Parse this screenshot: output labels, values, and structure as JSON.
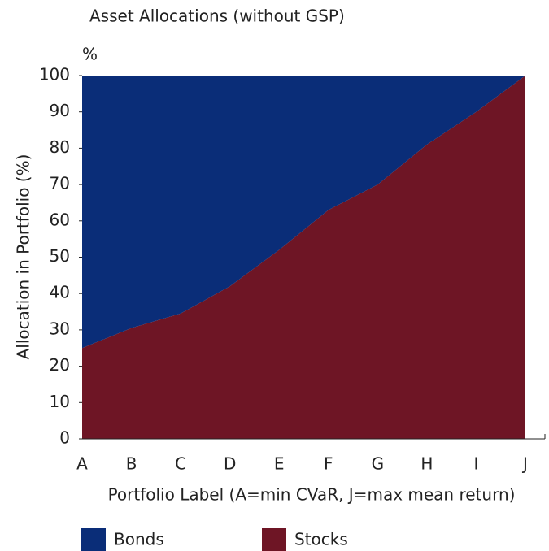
{
  "chart_data": {
    "type": "stacked_area",
    "title": "Asset Allocations (without GSP)",
    "y_unit": "%",
    "y_label": "Allocation in Portfolio (%)",
    "x_label": "Portfolio Label (A=min CVaR, J=max mean return)",
    "categories": [
      "A",
      "B",
      "C",
      "D",
      "E",
      "F",
      "G",
      "H",
      "I",
      "J"
    ],
    "series": [
      {
        "name": "Bonds",
        "color": "#0a2d78",
        "values": [
          75,
          69.5,
          65.5,
          58,
          48,
          37,
          30,
          19,
          10,
          0
        ]
      },
      {
        "name": "Stocks",
        "color": "#6e1525",
        "values": [
          25,
          30.5,
          34.5,
          42,
          52,
          63,
          70,
          81,
          90,
          100
        ]
      }
    ],
    "ylim": [
      0,
      100
    ],
    "yticks": [
      0,
      10,
      20,
      30,
      40,
      50,
      60,
      70,
      80,
      90,
      100
    ]
  }
}
